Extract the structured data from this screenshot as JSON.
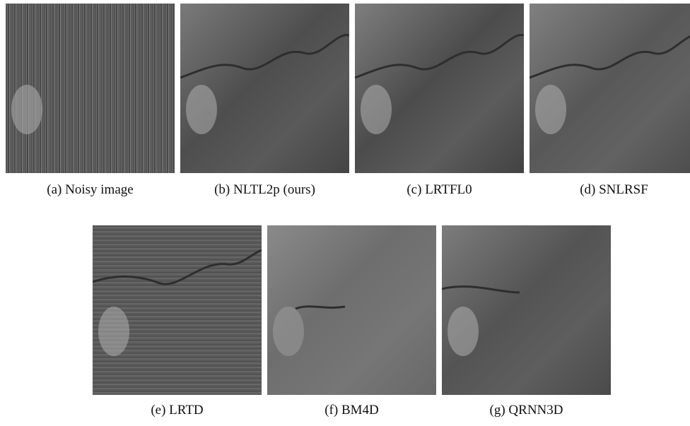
{
  "figures": [
    {
      "caption": "(a) Noisy image"
    },
    {
      "caption": "(b) NLTL2p (ours)"
    },
    {
      "caption": "(c) LRTFL0"
    },
    {
      "caption": "(d) SNLRSF"
    },
    {
      "caption": "(e) LRTD"
    },
    {
      "caption": "(f) BM4D"
    },
    {
      "caption": "(g) QRNN3D"
    }
  ]
}
